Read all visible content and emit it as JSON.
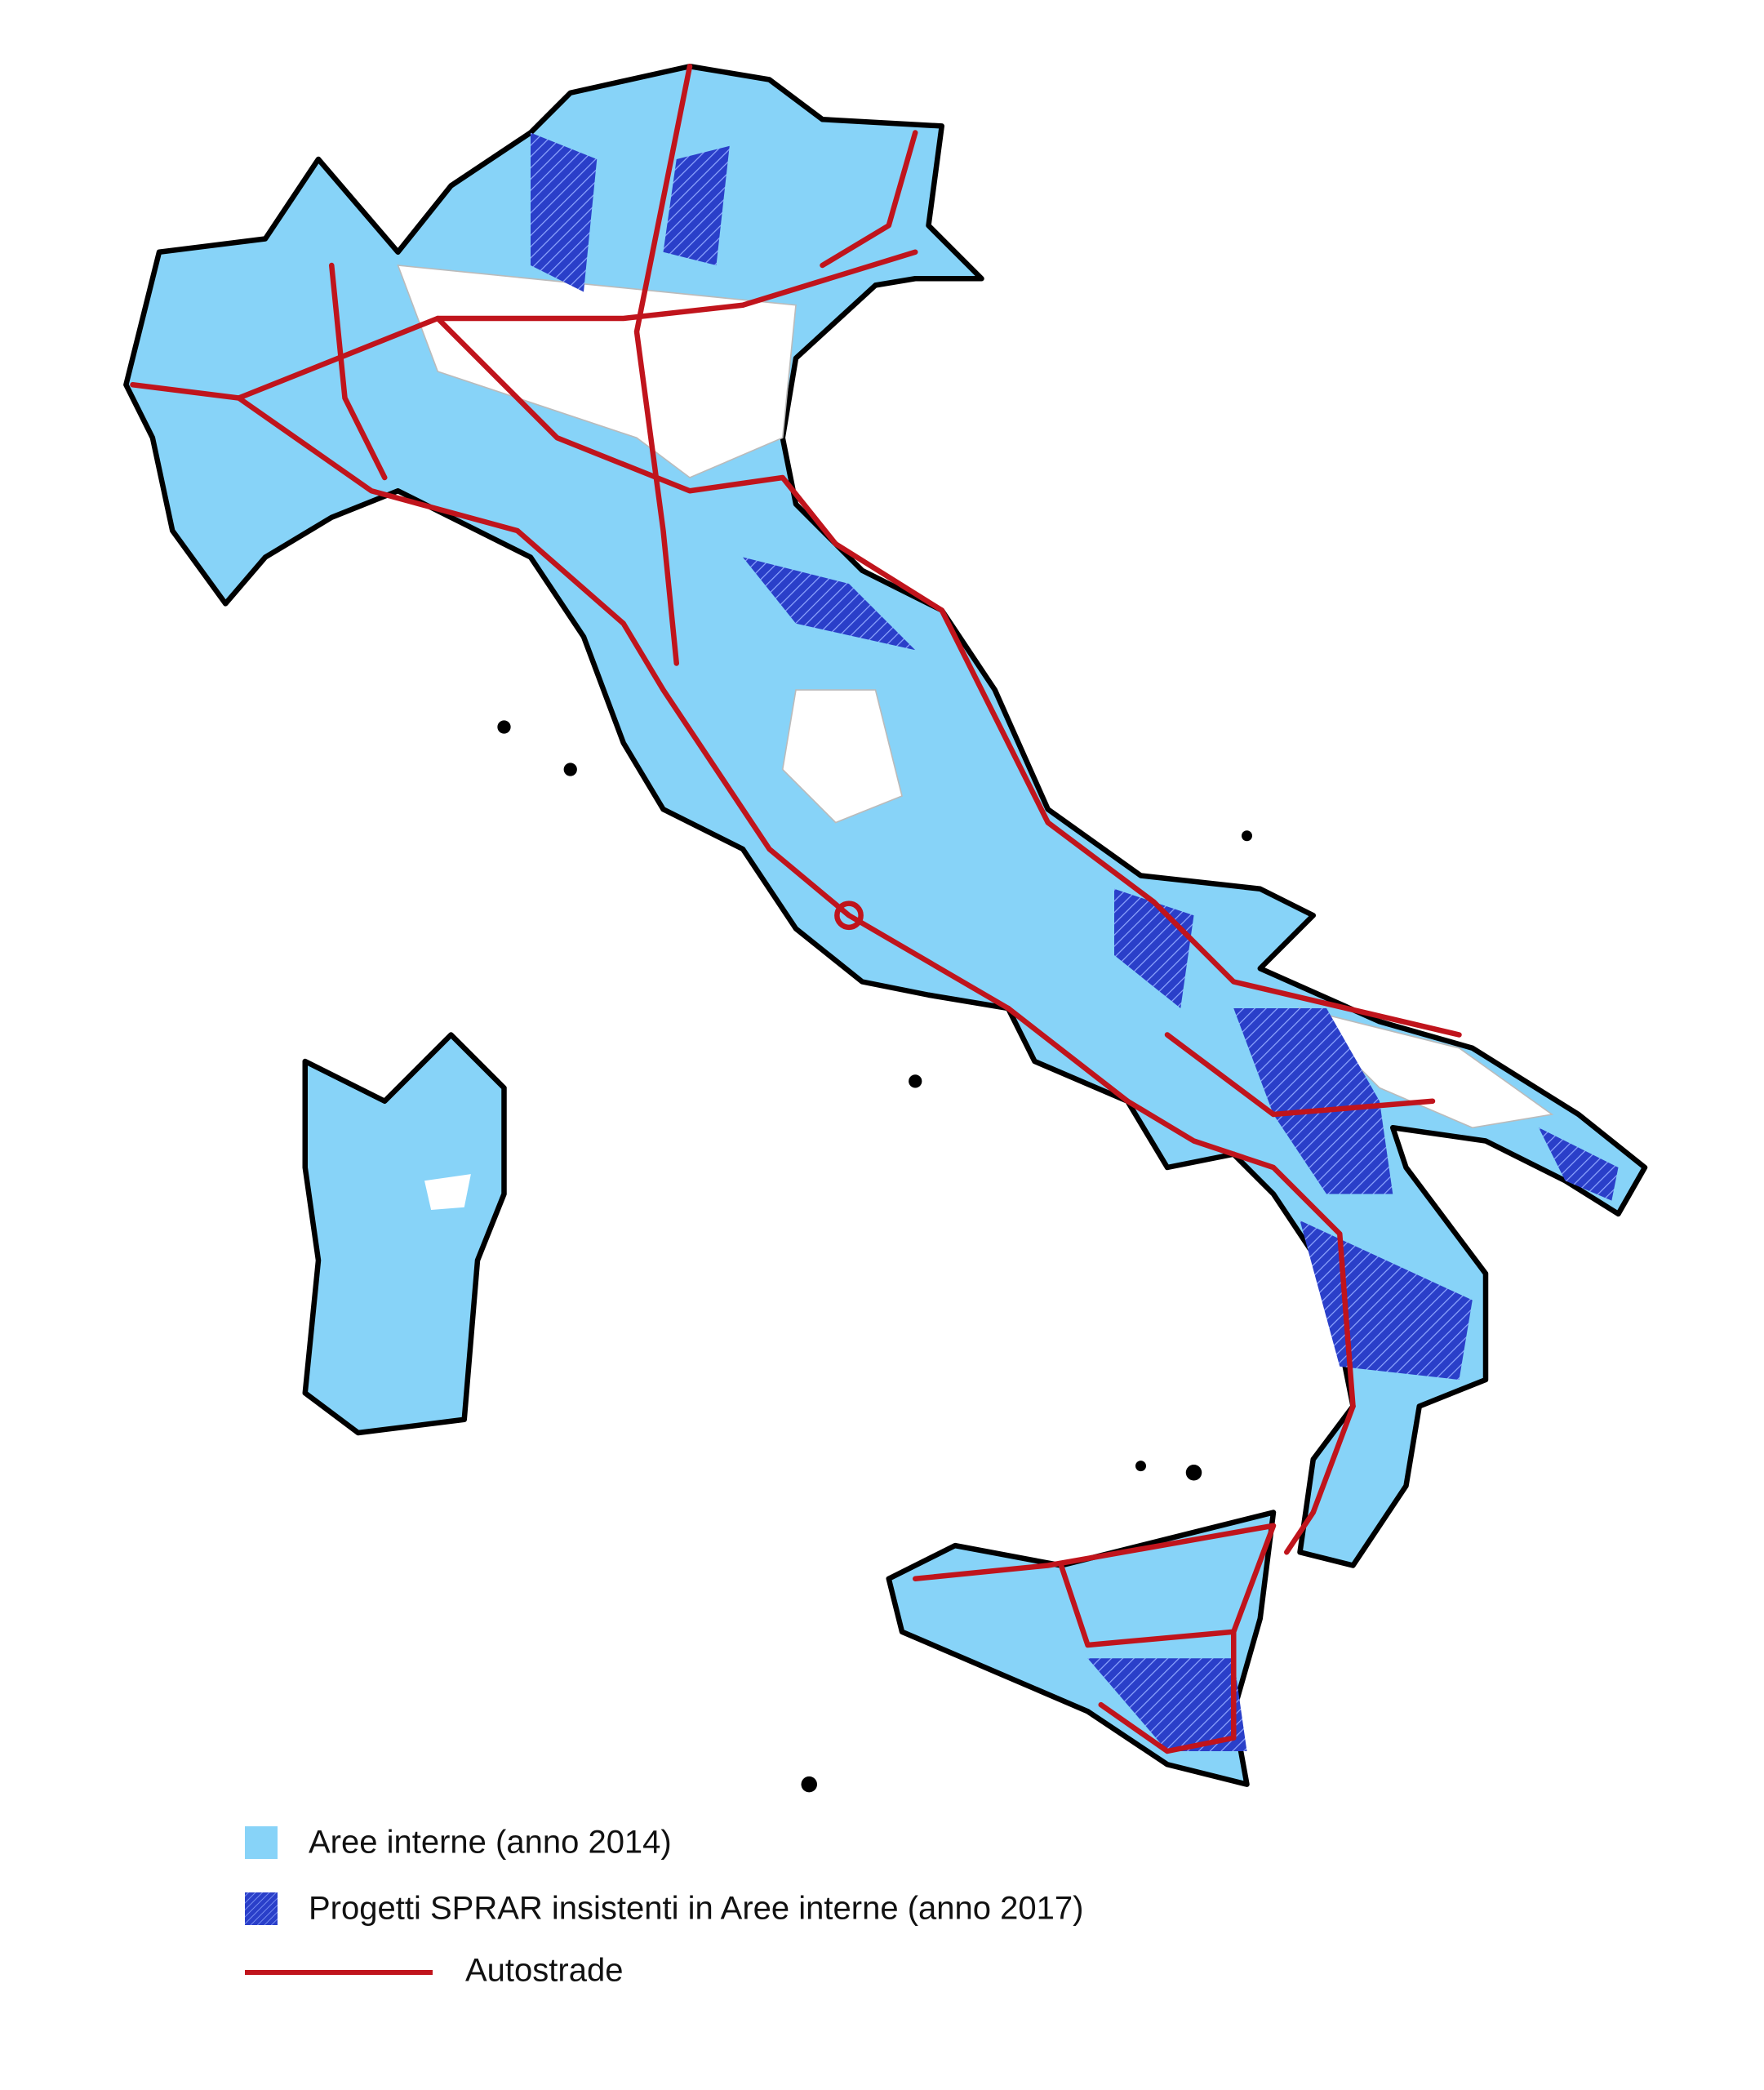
{
  "legend": {
    "items": [
      {
        "label": "Aree interne (anno 2014)"
      },
      {
        "label": "Progetti SPRAR insistenti in Aree interne (anno 2017)"
      },
      {
        "label": "Autostrade"
      }
    ]
  }
}
